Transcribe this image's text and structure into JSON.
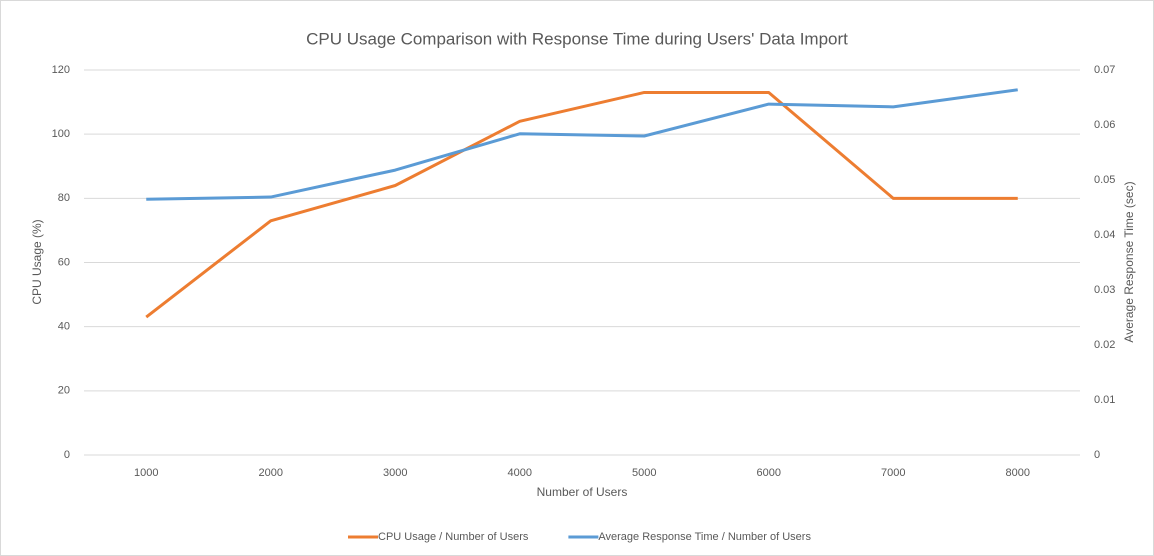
{
  "chart_data": {
    "type": "line",
    "title": "CPU Usage Comparison with Response Time during Users' Data Import",
    "x_label": "Number of Users",
    "y_label": "CPU Usage (%)",
    "y2_label": "Average Response Time (sec)",
    "categories": [
      "1000",
      "2000",
      "3000",
      "4000",
      "5000",
      "6000",
      "7000",
      "8000"
    ],
    "series": [
      {
        "name": "CPU Usage / Number of Users",
        "color": "#ED7D31",
        "values": [
          43,
          73,
          84,
          104,
          113,
          113,
          80,
          80
        ]
      },
      {
        "name": "Average Response Time / Number of Users",
        "color": "#5B9BD5",
        "axis": "y2",
        "values": [
          0.0465,
          0.0469,
          0.0518,
          0.0584,
          0.058,
          0.0638,
          0.0633,
          0.0664
        ]
      }
    ],
    "ylim": [
      0,
      120
    ],
    "yticks": [
      0,
      20,
      40,
      60,
      80,
      100,
      120
    ],
    "y2lim": [
      0,
      0.07
    ],
    "y2ticks": [
      0,
      0.01,
      0.02,
      0.03,
      0.04,
      0.05,
      0.06,
      0.07
    ],
    "grid": true,
    "legend": "bottom"
  }
}
